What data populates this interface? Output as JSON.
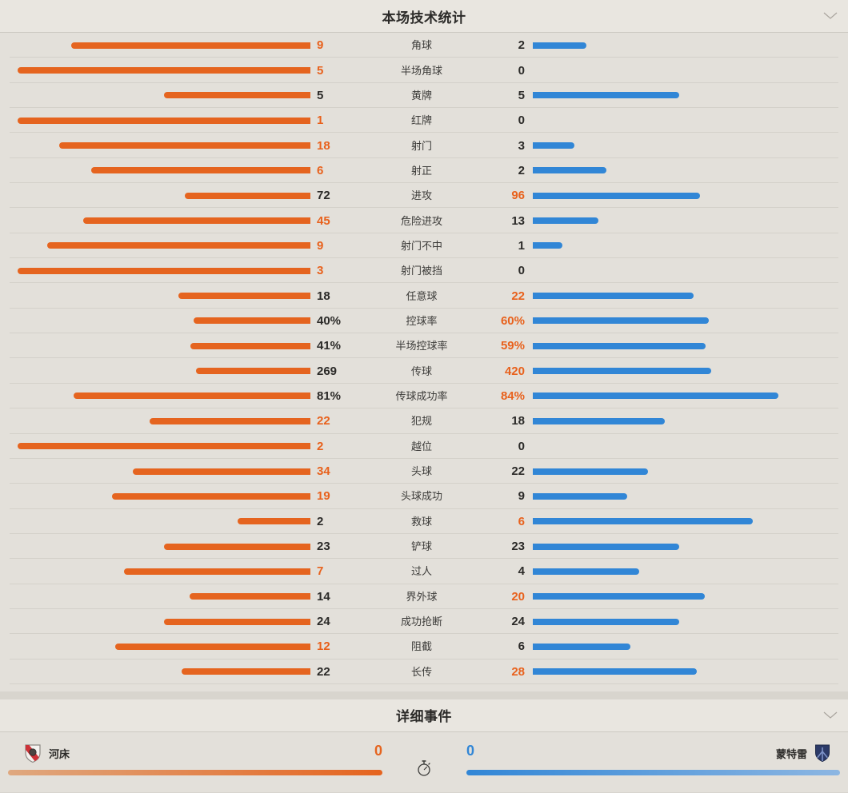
{
  "tech_stats": {
    "title": "本场技术统计",
    "rows": [
      {
        "label": "角球",
        "home": "9",
        "away": "2"
      },
      {
        "label": "半场角球",
        "home": "5",
        "away": "0"
      },
      {
        "label": "黄牌",
        "home": "5",
        "away": "5"
      },
      {
        "label": "红牌",
        "home": "1",
        "away": "0"
      },
      {
        "label": "射门",
        "home": "18",
        "away": "3"
      },
      {
        "label": "射正",
        "home": "6",
        "away": "2"
      },
      {
        "label": "进攻",
        "home": "72",
        "away": "96"
      },
      {
        "label": "危险进攻",
        "home": "45",
        "away": "13"
      },
      {
        "label": "射门不中",
        "home": "9",
        "away": "1"
      },
      {
        "label": "射门被挡",
        "home": "3",
        "away": "0"
      },
      {
        "label": "任意球",
        "home": "18",
        "away": "22"
      },
      {
        "label": "控球率",
        "home": "40%",
        "away": "60%"
      },
      {
        "label": "半场控球率",
        "home": "41%",
        "away": "59%"
      },
      {
        "label": "传球",
        "home": "269",
        "away": "420"
      },
      {
        "label": "传球成功率",
        "home": "81%",
        "away": "84%"
      },
      {
        "label": "犯规",
        "home": "22",
        "away": "18"
      },
      {
        "label": "越位",
        "home": "2",
        "away": "0"
      },
      {
        "label": "头球",
        "home": "34",
        "away": "22"
      },
      {
        "label": "头球成功",
        "home": "19",
        "away": "9"
      },
      {
        "label": "救球",
        "home": "2",
        "away": "6"
      },
      {
        "label": "铲球",
        "home": "23",
        "away": "23"
      },
      {
        "label": "过人",
        "home": "7",
        "away": "4"
      },
      {
        "label": "界外球",
        "home": "14",
        "away": "20"
      },
      {
        "label": "成功抢断",
        "home": "24",
        "away": "24"
      },
      {
        "label": "阻截",
        "home": "12",
        "away": "6"
      },
      {
        "label": "长传",
        "home": "22",
        "away": "28"
      }
    ]
  },
  "events": {
    "title": "详细事件",
    "home_team": "河床",
    "away_team": "蒙特雷",
    "home_score": "0",
    "away_score": "0"
  },
  "colors": {
    "home_accent": "#e5641f",
    "away_accent": "#3186d6",
    "value_highlight": "#e8611c"
  },
  "icons": {
    "section_collapse": "chevron-down",
    "match_timer": "stopwatch",
    "home_crest": "river-plate-shield",
    "away_crest": "monterrey-shield"
  }
}
